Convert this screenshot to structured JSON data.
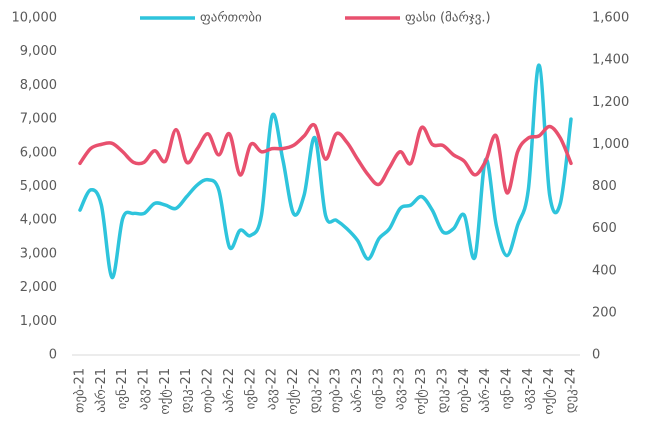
{
  "chart_data": {
    "type": "line",
    "categories": [
      "თებ-21",
      null,
      "აპრ-21",
      null,
      "ივნ-21",
      null,
      "აგვ-21",
      null,
      "ოქტ-21",
      null,
      "დეკ-21",
      null,
      "თებ-22",
      null,
      "აპრ-22",
      null,
      "ივნ-22",
      null,
      "აგვ-22",
      null,
      "ოქტ-22",
      null,
      "დეკ-22",
      null,
      "თებ-23",
      null,
      "აპრ-23",
      null,
      "ივნ-23",
      null,
      "აგვ-23",
      null,
      "ოქტ-23",
      null,
      "დეკ-23",
      null,
      "თებ-24",
      null,
      "აპრ-24",
      null,
      "ივნ-24",
      null,
      "აგვ-24",
      null,
      "ოქტ-24",
      null,
      "დეკ-24"
    ],
    "series": [
      {
        "name": "ფართობი",
        "color": "#2ec4dc",
        "axis": "y",
        "values": [
          4300,
          4900,
          4450,
          2300,
          4050,
          4200,
          4200,
          4500,
          4450,
          4350,
          4700,
          5050,
          5200,
          4900,
          3200,
          3700,
          3550,
          4150,
          7100,
          5800,
          4200,
          4750,
          6450,
          4150,
          4000,
          3750,
          3400,
          2850,
          3450,
          3750,
          4350,
          4450,
          4700,
          4300,
          3650,
          3750,
          4150,
          2900,
          5800,
          3850,
          2950,
          3850,
          4900,
          8600,
          4750,
          4500,
          7000
        ]
      },
      {
        "name": "ფასი (მარჯვ.)",
        "color": "#e8506e",
        "axis": "y2",
        "values": [
          910,
          980,
          1000,
          1005,
          965,
          915,
          915,
          970,
          920,
          1070,
          915,
          980,
          1050,
          950,
          1050,
          855,
          1000,
          965,
          980,
          980,
          995,
          1040,
          1090,
          930,
          1050,
          1010,
          930,
          855,
          810,
          890,
          965,
          910,
          1080,
          1000,
          995,
          950,
          920,
          855,
          920,
          1040,
          770,
          965,
          1030,
          1040,
          1085,
          1030,
          910
        ]
      }
    ],
    "ylim": [
      0,
      10000
    ],
    "yticks": [
      0,
      {
        "value": 1000,
        "label": "1,000"
      },
      {
        "value": 2000,
        "label": "2,000"
      },
      {
        "value": 3000,
        "label": "3,000"
      },
      {
        "value": 4000,
        "label": "4,000"
      },
      {
        "value": 5000,
        "label": "5,000"
      },
      {
        "value": 6000,
        "label": "6,000"
      },
      {
        "value": 7000,
        "label": "7,000"
      },
      {
        "value": 8000,
        "label": "8,000"
      },
      {
        "value": 9000,
        "label": "9,000"
      },
      {
        "value": 10000,
        "label": "10,000"
      }
    ],
    "y2lim": [
      0,
      1600
    ],
    "y2ticks": [
      0,
      200,
      400,
      600,
      800,
      {
        "value": 1000,
        "label": "1,000"
      },
      {
        "value": 1200,
        "label": "1,200"
      },
      {
        "value": 1400,
        "label": "1,400"
      },
      {
        "value": 1600,
        "label": "1,600"
      }
    ],
    "legend": "top"
  }
}
